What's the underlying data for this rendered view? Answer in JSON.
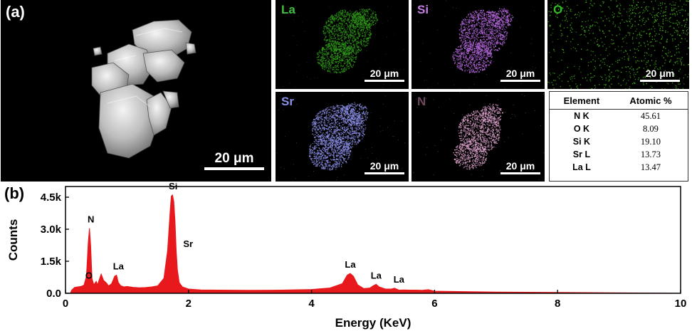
{
  "panel_a": {
    "label": "(a)",
    "sem_scale": "20 μm",
    "maps": [
      {
        "element": "La",
        "scale": "20 μm",
        "label_color": "#3fbf3f",
        "dot_color": "#2f9a1a"
      },
      {
        "element": "Si",
        "scale": "20 μm",
        "label_color": "#c77ee6",
        "dot_color": "#b266d9"
      },
      {
        "element": "O",
        "scale": "20 μm",
        "label_color": "#2fbf1f",
        "dot_color": "#4cc21e"
      },
      {
        "element": "Sr",
        "scale": "20 μm",
        "label_color": "#8a90e6",
        "dot_color": "#8c8fe6"
      },
      {
        "element": "N",
        "scale": "20 μm",
        "label_color": "#6e4a5e",
        "dot_color": "#d9a0c9"
      }
    ],
    "table": {
      "headers": [
        "Element",
        "Atomic %"
      ],
      "rows": [
        {
          "element": "N K",
          "value": "45.61"
        },
        {
          "element": "O K",
          "value": "8.09"
        },
        {
          "element": "Si K",
          "value": "19.10"
        },
        {
          "element": "Sr L",
          "value": "13.73"
        },
        {
          "element": "La L",
          "value": "13.47"
        }
      ]
    }
  },
  "panel_b": {
    "label": "(b)"
  },
  "chart_data": {
    "type": "area",
    "xlabel": "Energy (KeV)",
    "ylabel": "Counts",
    "xlim": [
      0,
      10
    ],
    "ylim": [
      0,
      5000
    ],
    "x_ticks": [
      0,
      2,
      4,
      6,
      8,
      10
    ],
    "x_tick_labels": [
      "0",
      "2",
      "4",
      "6",
      "8",
      "10"
    ],
    "y_ticks": [
      0,
      1500,
      3000,
      4500
    ],
    "y_tick_labels": [
      "0.0",
      "1.5k",
      "3.0k",
      "4.5k"
    ],
    "color": "#e8191c",
    "series": [
      {
        "x": [
          0.08,
          0.1,
          0.15,
          0.2,
          0.25,
          0.3,
          0.34,
          0.37,
          0.39,
          0.41,
          0.43,
          0.46,
          0.5,
          0.52,
          0.55,
          0.58,
          0.62,
          0.66,
          0.7,
          0.75,
          0.8,
          0.83,
          0.86,
          0.9,
          0.95,
          1.0,
          1.1,
          1.2,
          1.3,
          1.4,
          1.5,
          1.6,
          1.66,
          1.7,
          1.72,
          1.74,
          1.76,
          1.78,
          1.8,
          1.82,
          1.85,
          1.9,
          2.0,
          2.2,
          2.5,
          3.0,
          3.5,
          4.0,
          4.3,
          4.5,
          4.58,
          4.63,
          4.68,
          4.75,
          4.85,
          4.95,
          5.0,
          5.05,
          5.1,
          5.2,
          5.3,
          5.35,
          5.42,
          5.5,
          5.6,
          5.7,
          5.8,
          5.9,
          6.0,
          6.5,
          7.0,
          8.0,
          9.0,
          10.0
        ],
        "y": [
          0,
          150,
          280,
          300,
          320,
          380,
          800,
          2400,
          3050,
          2200,
          700,
          400,
          560,
          400,
          650,
          900,
          600,
          500,
          350,
          450,
          800,
          850,
          500,
          350,
          300,
          320,
          280,
          260,
          270,
          300,
          350,
          700,
          2000,
          3800,
          4550,
          4600,
          4300,
          3400,
          2000,
          1100,
          500,
          300,
          200,
          160,
          150,
          140,
          150,
          180,
          250,
          450,
          850,
          930,
          800,
          400,
          220,
          250,
          350,
          420,
          300,
          200,
          200,
          240,
          150,
          160,
          150,
          150,
          140,
          170,
          100,
          80,
          60,
          40,
          20,
          0
        ]
      }
    ],
    "peaks": [
      {
        "label": "N",
        "x": 0.39,
        "y": 3050
      },
      {
        "label": "O",
        "x": 0.52,
        "y": 550
      },
      {
        "label": "La",
        "x": 0.86,
        "y": 850
      },
      {
        "label": "Si",
        "x": 1.75,
        "y": 4600
      },
      {
        "label": "Sr",
        "x": 1.9,
        "y": 2100
      },
      {
        "label": "La",
        "x": 4.63,
        "y": 930
      },
      {
        "label": "La",
        "x": 5.05,
        "y": 420
      },
      {
        "label": "La",
        "x": 5.42,
        "y": 240
      }
    ]
  }
}
